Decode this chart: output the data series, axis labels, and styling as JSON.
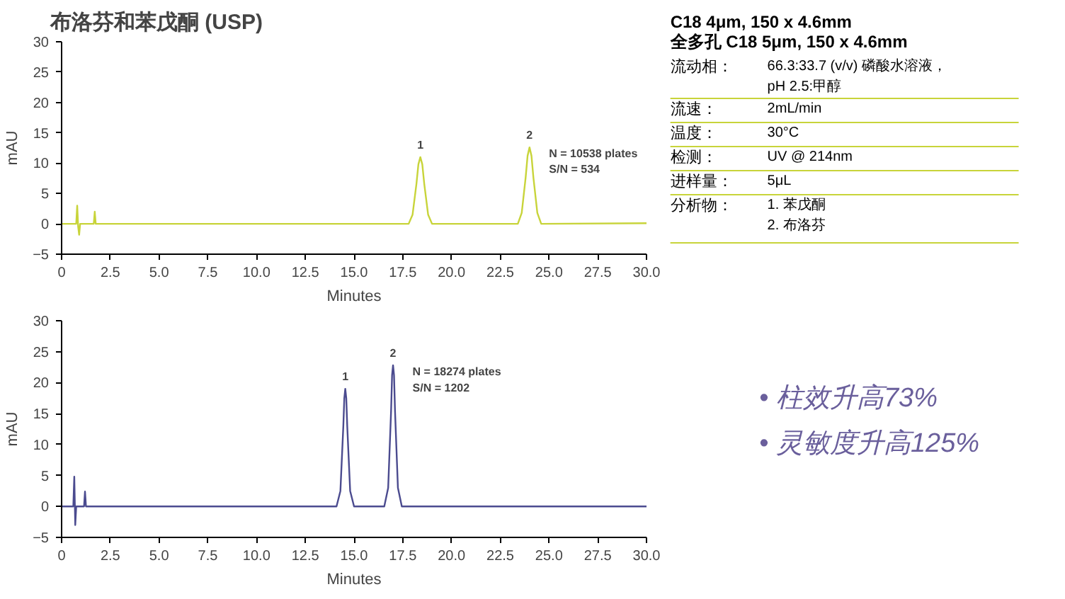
{
  "chart_data": [
    {
      "type": "line",
      "title": "布洛芬和苯戊酮 (USP)",
      "xlabel": "Minutes",
      "ylabel": "mAU",
      "xlim": [
        0,
        30
      ],
      "ylim": [
        -5,
        30
      ],
      "xticks": [
        0,
        2.5,
        {
          "value": 5,
          "label": "5.0"
        },
        7.5,
        {
          "value": 10,
          "label": "10.0"
        },
        12.5,
        {
          "value": 15,
          "label": "15.0"
        },
        17.5,
        {
          "value": 20,
          "label": "20.0"
        },
        22.5,
        {
          "value": 25,
          "label": "25.0"
        },
        27.5,
        {
          "value": 30,
          "label": "30.0"
        }
      ],
      "yticks": [
        -5,
        0,
        5,
        10,
        15,
        20,
        25,
        30
      ],
      "grid": false,
      "series": [
        {
          "color": "#c8d43a",
          "x": [
            0,
            0.75,
            0.8,
            0.85,
            0.9,
            0.95,
            1.0,
            1.65,
            1.7,
            1.75,
            17.8,
            18.0,
            18.2,
            18.3,
            18.4,
            18.5,
            18.6,
            18.8,
            19.0,
            23.4,
            23.6,
            23.8,
            23.9,
            24.0,
            24.1,
            24.2,
            24.4,
            24.6,
            30
          ],
          "values": [
            0,
            0,
            3,
            -0.5,
            -1.8,
            0,
            0,
            0,
            2,
            0,
            0,
            1.5,
            6.6,
            9.8,
            11,
            9.8,
            6.6,
            1.5,
            0,
            0,
            1.8,
            7.6,
            11.2,
            12.6,
            11.2,
            7.6,
            1.8,
            0,
            0.1
          ]
        }
      ],
      "annotations": [
        {
          "text": "1",
          "x": 18.4,
          "y": 11
        },
        {
          "text": "2",
          "x": 24.0,
          "y": 12.6
        },
        "N = 10538 plates",
        "S/N = 534"
      ]
    },
    {
      "type": "other",
      "title": "C18 4μm, 150 x 4.6mm",
      "subtitle": "全多孔 C18 5μm, 150 x 4.6mm",
      "annotations": [
        "流动相：",
        "66.3:33.7 (v/v) 磷酸水溶液，\npH 2.5:甲醇",
        "流速：",
        "2mL/min",
        "温度：",
        "30°C",
        "检测：",
        "UV @ 214nm",
        "进样量：",
        "5μL",
        "分析物：",
        "1. 苯戊酮\n2. 布洛芬"
      ]
    },
    {
      "type": "line",
      "xlabel": "Minutes",
      "ylabel": "mAU",
      "xlim": [
        0,
        30
      ],
      "ylim": [
        -5,
        30
      ],
      "xticks": [
        0,
        2.5,
        {
          "value": 5,
          "label": "5.0"
        },
        7.5,
        {
          "value": 10,
          "label": "10.0"
        },
        12.5,
        {
          "value": 15,
          "label": "15.0"
        },
        17.5,
        {
          "value": 20,
          "label": "20.0"
        },
        22.5,
        {
          "value": 25,
          "label": "25.0"
        },
        27.5,
        {
          "value": 30,
          "label": "30.0"
        }
      ],
      "yticks": [
        -5,
        0,
        5,
        10,
        15,
        20,
        25,
        30
      ],
      "grid": false,
      "series": [
        {
          "color": "#4b4b8f",
          "x": [
            0,
            0.6,
            0.65,
            0.7,
            0.75,
            0.8,
            1.15,
            1.2,
            1.25,
            14.1,
            14.3,
            14.45,
            14.5,
            14.55,
            14.6,
            14.65,
            14.8,
            15.0,
            16.55,
            16.75,
            16.9,
            16.95,
            17.0,
            17.05,
            17.1,
            17.25,
            17.45,
            30
          ],
          "values": [
            0,
            0,
            4.8,
            -3,
            0,
            0,
            0,
            2.4,
            0,
            0,
            2.5,
            13,
            17.5,
            19,
            17.5,
            13,
            2.5,
            0,
            0,
            3,
            15.5,
            21.2,
            22.8,
            21.2,
            15.5,
            3,
            0,
            0
          ]
        }
      ],
      "annotations": [
        {
          "text": "1",
          "x": 14.55,
          "y": 19
        },
        {
          "text": "2",
          "x": 17.0,
          "y": 22.8
        },
        "N = 18274 plates",
        "S/N = 1202"
      ]
    },
    {
      "type": "other",
      "annotations": [
        "• 柱效升高73%",
        "• 灵敏度升高125%"
      ]
    }
  ]
}
